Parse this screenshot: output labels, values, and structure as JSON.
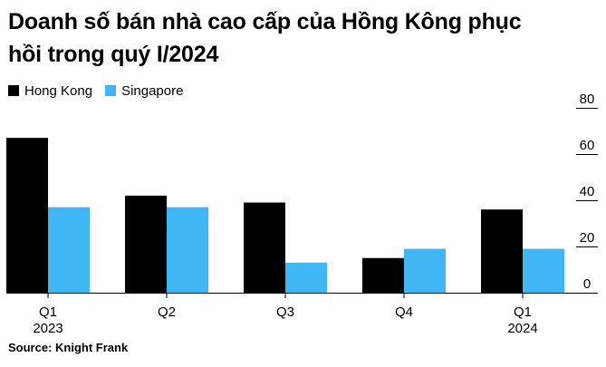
{
  "title": "Doanh số bán nhà cao cấp của Hồng Kông phục hồi trong quý I/2024",
  "source": "Source: Knight Frank",
  "colors": {
    "hong_kong": "#000000",
    "singapore": "#41b6f5"
  },
  "chart_data": {
    "type": "bar",
    "title": "Doanh số bán nhà cao cấp của Hồng Kông phục hồi trong quý I/2024",
    "categories": [
      "Q1",
      "Q2",
      "Q3",
      "Q4",
      "Q1"
    ],
    "category_years": [
      "2023",
      "",
      "",
      "",
      "2024"
    ],
    "series": [
      {
        "name": "Hong Kong",
        "values": [
          67,
          42,
          39,
          15,
          36
        ]
      },
      {
        "name": "Singapore",
        "values": [
          37,
          37,
          13,
          19,
          19
        ]
      }
    ],
    "yticks": [
      "80",
      "60",
      "40",
      "20",
      "0"
    ],
    "ylim": [
      0,
      80
    ],
    "y_axis_side": "right",
    "grid": false,
    "legend_position": "top-left"
  }
}
